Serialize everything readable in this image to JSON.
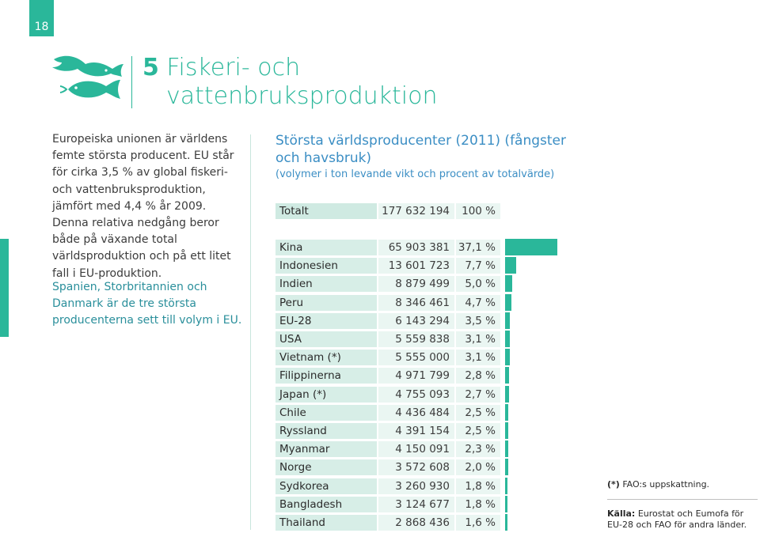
{
  "page_number": "18",
  "chapter": {
    "number": "5",
    "title_line1": "Fiskeri- och",
    "title_line2": "vattenbruksproduktion"
  },
  "intro_text": "Europeiska unionen är världens femte största producent. EU står för cirka 3,5 % av global fiskeri- och vattenbruksproduktion, jämfört med 4,4 % år 2009. Denna relativa nedgång beror både på växande total världsproduktion och på ett litet fall i EU-produktion.",
  "highlight_text": "Spanien, Storbritannien och Danmark är de tre största producenterna sett till volym i EU.",
  "table": {
    "title": "Största världsproducenter (2011) (fångster och havsbruk)",
    "subtitle": "(volymer i ton levande vikt och procent av totalvärde)",
    "total": {
      "name": "Totalt",
      "volume": "177 632 194",
      "percent": "100 %"
    },
    "rows": [
      {
        "name": "Kina",
        "volume": "65 903 381",
        "percent": "37,1 %",
        "share": 37.1
      },
      {
        "name": "Indonesien",
        "volume": "13 601 723",
        "percent": "7,7 %",
        "share": 7.7
      },
      {
        "name": "Indien",
        "volume": "8 879 499",
        "percent": "5,0 %",
        "share": 5.0
      },
      {
        "name": "Peru",
        "volume": "8 346 461",
        "percent": "4,7 %",
        "share": 4.7
      },
      {
        "name": "EU-28",
        "volume": "6 143 294",
        "percent": "3,5 %",
        "share": 3.5
      },
      {
        "name": "USA",
        "volume": "5 559 838",
        "percent": "3,1 %",
        "share": 3.1
      },
      {
        "name": "Vietnam (*)",
        "volume": "5 555 000",
        "percent": "3,1 %",
        "share": 3.1
      },
      {
        "name": "Filippinerna",
        "volume": "4 971 799",
        "percent": "2,8 %",
        "share": 2.8
      },
      {
        "name": "Japan (*)",
        "volume": "4 755 093",
        "percent": "2,7 %",
        "share": 2.7
      },
      {
        "name": "Chile",
        "volume": "4 436 484",
        "percent": "2,5 %",
        "share": 2.5
      },
      {
        "name": "Ryssland",
        "volume": "4 391 154",
        "percent": "2,5 %",
        "share": 2.5
      },
      {
        "name": "Myanmar",
        "volume": "4 150 091",
        "percent": "2,3 %",
        "share": 2.3
      },
      {
        "name": "Norge",
        "volume": "3 572 608",
        "percent": "2,0 %",
        "share": 2.0
      },
      {
        "name": "Sydkorea",
        "volume": "3 260 930",
        "percent": "1,8 %",
        "share": 1.8
      },
      {
        "name": "Bangladesh",
        "volume": "3 124 677",
        "percent": "1,8 %",
        "share": 1.8
      },
      {
        "name": "Thailand",
        "volume": "2 868 436",
        "percent": "1,6 %",
        "share": 1.6
      }
    ]
  },
  "footnote": {
    "mark": "(*)",
    "text": "FAO:s uppskattning."
  },
  "source": {
    "label": "Källa:",
    "text": "Eurostat och Eumofa för EU-28 och FAO för andra länder."
  },
  "colors": {
    "accent": "#2ab79a",
    "title_blue": "#3b8ec4"
  }
}
